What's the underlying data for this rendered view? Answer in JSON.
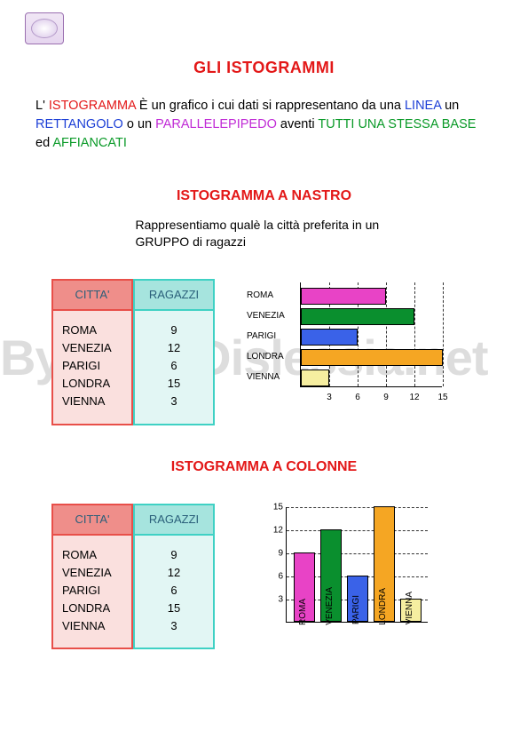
{
  "watermark": "By AiutoDislessia.net",
  "main_title": "GLI ISTOGRAMMI",
  "paragraph": {
    "p1": "L' ",
    "t_istogramma": "ISTOGRAMMA",
    "p2": " È un grafico i cui dati si rappresentano da una ",
    "t_linea": "LINEA",
    "p3": " un ",
    "t_rett": "RETTANGOLO",
    "p4": " o un ",
    "t_para": "PARALLELEPIPEDO",
    "p5": " aventi ",
    "t_tutti": "TUTTI UNA STESSA BASE",
    "p6": " ed ",
    "t_aff": "AFFIANCATI"
  },
  "colors": {
    "red": "#e31818",
    "blue": "#1b3ed6",
    "purple": "#c02bd6",
    "green": "#0a9a28"
  },
  "sub1": "ISTOGRAMMA A NASTRO",
  "sub1_intro": "Rappresentiamo qualè la città preferita in un GRUPPO di ragazzi",
  "sub2": "ISTOGRAMMA A COLONNE",
  "table": {
    "head_citta": "CITTA'",
    "head_ragazzi": "RAGAZZI",
    "rows": [
      {
        "city": "ROMA",
        "val": 9
      },
      {
        "city": "VENEZIA",
        "val": 12
      },
      {
        "city": "PARIGI",
        "val": 6
      },
      {
        "city": "LONDRA",
        "val": 15
      },
      {
        "city": "VIENNA",
        "val": 3
      }
    ]
  },
  "chart": {
    "max": 15,
    "ticks": [
      3,
      6,
      9,
      12,
      15
    ],
    "bars": [
      {
        "label": "ROMA",
        "val": 9,
        "color": "#e843c6"
      },
      {
        "label": "VENEZIA",
        "val": 12,
        "color": "#0a8f2e"
      },
      {
        "label": "PARIGI",
        "val": 6,
        "color": "#3a62e8"
      },
      {
        "label": "LONDRA",
        "val": 15,
        "color": "#f5a623"
      },
      {
        "label": "VIENNA",
        "val": 3,
        "color": "#f6eea0"
      }
    ],
    "axis_len_h": 160,
    "axis_len_v": 130,
    "bar_h_height": 19,
    "bar_h_gap": 4,
    "bar_v_width": 24,
    "bar_v_gap": 6
  }
}
